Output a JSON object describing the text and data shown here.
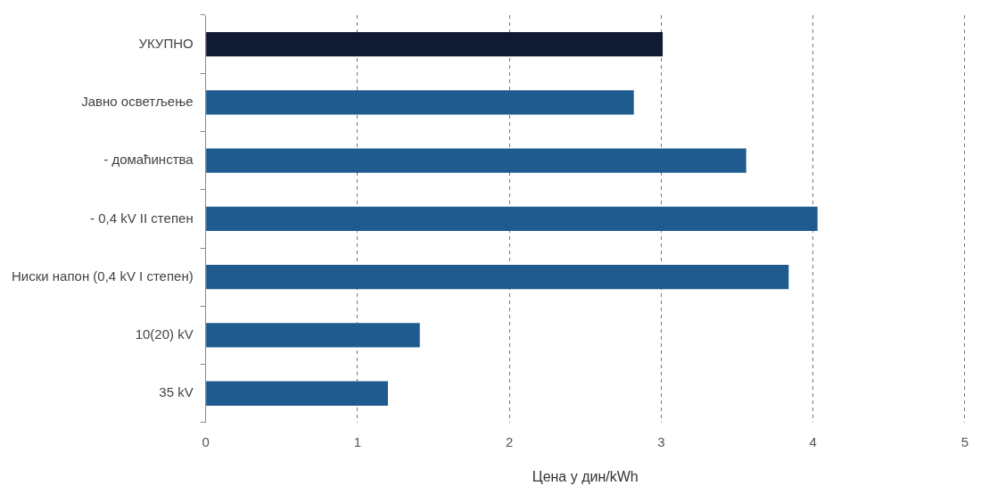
{
  "chart_data": {
    "type": "bar",
    "orientation": "horizontal",
    "xlabel": "Цена у дин/kWh",
    "categories": [
      "УКУПНО",
      "Јавно осветљење",
      "- домаћинства",
      "- 0,4 kV II степен",
      "Ниски напон (0,4 kV I степен)",
      "10(20) kV",
      "35 kV"
    ],
    "values": [
      3.01,
      2.82,
      3.56,
      4.03,
      3.84,
      1.41,
      1.2
    ],
    "colors": [
      "#111a33",
      "#1f5b8e",
      "#1f5b8e",
      "#1f5b8e",
      "#1f5b8e",
      "#1f5b8e",
      "#1f5b8e"
    ],
    "xlim": [
      0,
      5
    ],
    "xticks": [
      0,
      1,
      2,
      3,
      4,
      5
    ],
    "grid": "x",
    "legend": false
  }
}
